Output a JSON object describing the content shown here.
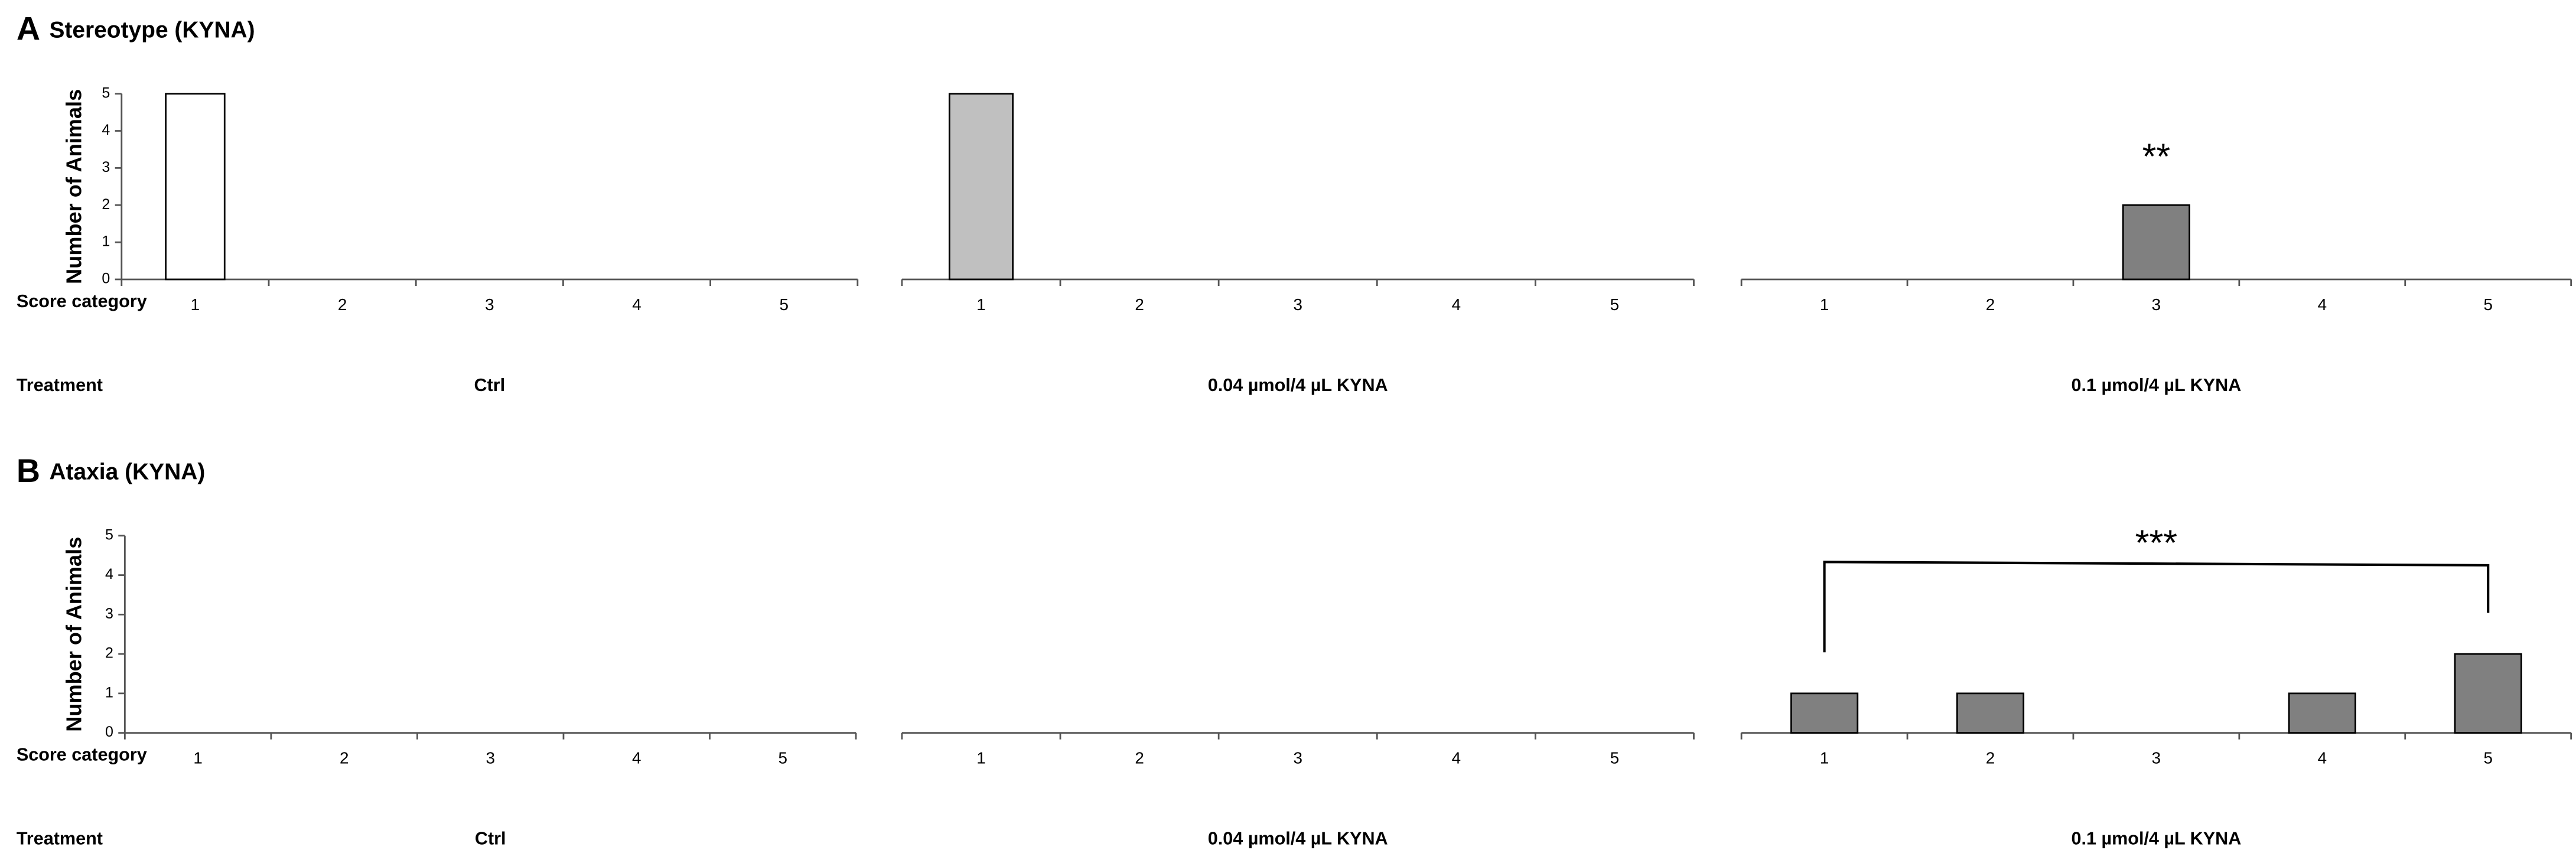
{
  "chart_data": [
    {
      "type": "bar",
      "panel_label": "A",
      "title": "Stereotype (KYNA)",
      "ylabel": "Number of Animals",
      "xlabel": "Score category",
      "treatment_label": "Treatment",
      "treatment": "Ctrl",
      "categories": [
        "1",
        "2",
        "3",
        "4",
        "5"
      ],
      "values": [
        5,
        0,
        0,
        0,
        0
      ],
      "color": "#ffffff",
      "ylim": [
        0,
        5
      ],
      "yticks": [
        0,
        1,
        2,
        3,
        4,
        5
      ]
    },
    {
      "type": "bar",
      "treatment": "0.04 µmol/4 µL KYNA",
      "categories": [
        "1",
        "2",
        "3",
        "4",
        "5"
      ],
      "values": [
        5,
        0,
        0,
        0,
        0
      ],
      "color": "#c0c0c0",
      "ylim": [
        0,
        5
      ]
    },
    {
      "type": "bar",
      "treatment": "0.1 µmol/4 µL KYNA",
      "annotation": "**",
      "categories": [
        "1",
        "2",
        "3",
        "4",
        "5"
      ],
      "values": [
        0,
        0,
        2,
        0,
        0
      ],
      "color": "#808080",
      "ylim": [
        0,
        5
      ]
    },
    {
      "type": "bar",
      "panel_label": "B",
      "title": "Ataxia (KYNA)",
      "ylabel": "Number of Animals",
      "xlabel": "Score category",
      "treatment_label": "Treatment",
      "treatment": "Ctrl",
      "categories": [
        "1",
        "2",
        "3",
        "4",
        "5"
      ],
      "values": [
        0,
        0,
        0,
        0,
        0
      ],
      "color": "#ffffff",
      "ylim": [
        0,
        5
      ],
      "yticks": [
        0,
        1,
        2,
        3,
        4,
        5
      ]
    },
    {
      "type": "bar",
      "treatment": "0.04 µmol/4 µL KYNA",
      "categories": [
        "1",
        "2",
        "3",
        "4",
        "5"
      ],
      "values": [
        0,
        0,
        0,
        0,
        0
      ],
      "color": "#c0c0c0",
      "ylim": [
        0,
        5
      ]
    },
    {
      "type": "bar",
      "treatment": "0.1 µmol/4 µL KYNA",
      "annotation": "***",
      "categories": [
        "1",
        "2",
        "3",
        "4",
        "5"
      ],
      "values": [
        1,
        1,
        0,
        1,
        2
      ],
      "color": "#808080",
      "ylim": [
        0,
        5
      ]
    }
  ]
}
